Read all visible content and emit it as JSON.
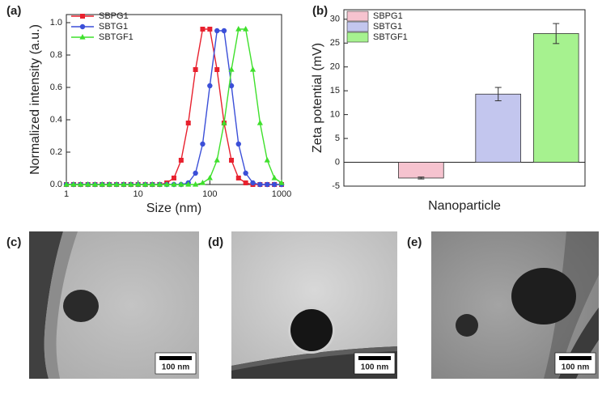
{
  "panel_labels": [
    "(a)",
    "(b)",
    "(c)",
    "(d)",
    "(e)"
  ],
  "scale_bars": [
    "100 nm",
    "100 nm",
    "100 nm"
  ],
  "chart_data": [
    {
      "type": "line",
      "x_label": "Size (nm)",
      "y_label": "Normalized intensity (a.u.)",
      "xscale": "log",
      "xlim": [
        1,
        1000
      ],
      "xticks": [
        1,
        10,
        100,
        1000
      ],
      "ylim": [
        0,
        1.05
      ],
      "yticks": [
        {
          "value": 0,
          "label": "0.0"
        },
        0.2,
        0.4,
        0.6,
        0.8,
        {
          "value": 1,
          "label": "1.0"
        }
      ],
      "legend": "top-left",
      "x": [
        1,
        1.26,
        1.58,
        2,
        2.51,
        3.16,
        3.98,
        5.01,
        6.31,
        7.94,
        10,
        12.6,
        15.8,
        20,
        25.1,
        31.6,
        39.8,
        50.1,
        63.1,
        79.4,
        100,
        126,
        158,
        200,
        251,
        316,
        398,
        501,
        631,
        794,
        1000
      ],
      "series": [
        {
          "name": "SBPG1",
          "color": "#e8212e",
          "marker": "square",
          "values": [
            0,
            0,
            0,
            0,
            0,
            0,
            0,
            0,
            0,
            0,
            0,
            0,
            0,
            0,
            0.01,
            0.04,
            0.15,
            0.38,
            0.71,
            0.96,
            0.96,
            0.71,
            0.38,
            0.15,
            0.04,
            0.01,
            0,
            0,
            0,
            0,
            0
          ]
        },
        {
          "name": "SBTG1",
          "color": "#3b4fd8",
          "marker": "circle",
          "values": [
            0,
            0,
            0,
            0,
            0,
            0,
            0,
            0,
            0,
            0,
            0,
            0,
            0,
            0,
            0,
            0,
            0,
            0.01,
            0.07,
            0.25,
            0.61,
            0.95,
            0.95,
            0.61,
            0.25,
            0.07,
            0.01,
            0,
            0,
            0,
            0
          ]
        },
        {
          "name": "SBTGF1",
          "color": "#3fe02c",
          "marker": "triangle",
          "values": [
            0,
            0,
            0,
            0,
            0,
            0,
            0,
            0,
            0,
            0,
            0,
            0,
            0,
            0,
            0,
            0,
            0,
            0,
            0,
            0.01,
            0.04,
            0.15,
            0.38,
            0.71,
            0.96,
            0.96,
            0.71,
            0.38,
            0.15,
            0.04,
            0.01
          ]
        }
      ]
    },
    {
      "type": "bar",
      "x_label": "Nanoparticle",
      "y_label": "Zeta potential (mV)",
      "categories": [
        null
      ],
      "ylim": [
        -5,
        32
      ],
      "yticks": [
        -5,
        0,
        5,
        10,
        15,
        20,
        25,
        30
      ],
      "legend": "top-left",
      "series": [
        {
          "name": "SBPG1",
          "color": "#f6c3cf",
          "values": [
            -3.3
          ],
          "errors": [
            0.2
          ]
        },
        {
          "name": "SBTG1",
          "color": "#c3c6ee",
          "values": [
            14.3
          ],
          "errors": [
            1.4
          ]
        },
        {
          "name": "SBTGF1",
          "color": "#a6f28f",
          "values": [
            27
          ],
          "errors": [
            2.1
          ]
        }
      ]
    }
  ]
}
